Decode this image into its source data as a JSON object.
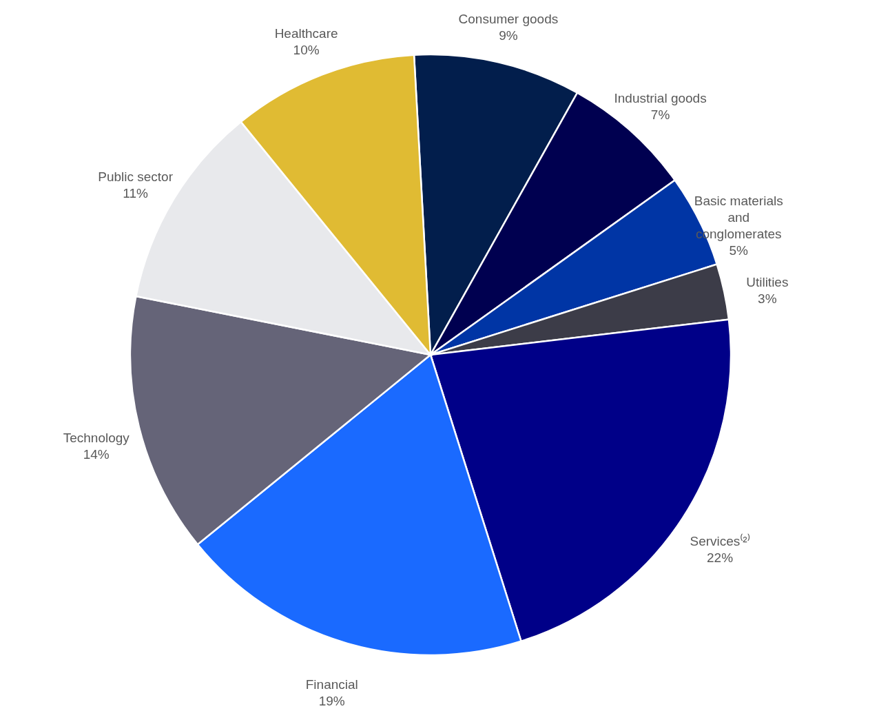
{
  "chart_data": {
    "type": "pie",
    "categories": [
      "Consumer goods",
      "Industrial goods",
      "Basic materials and conglomerates",
      "Utilities",
      "Services⁽²⁾",
      "Financial",
      "Technology",
      "Public sector",
      "Healthcare"
    ],
    "values": [
      9,
      7,
      5,
      3,
      22,
      19,
      14,
      11,
      10
    ],
    "colors": [
      "#021e4c",
      "#000050",
      "#0035a5",
      "#3c3c48",
      "#000088",
      "#1a6aff",
      "#656478",
      "#e8e9ec",
      "#e0bb33"
    ],
    "value_labels": [
      "9%",
      "7%",
      "5%",
      "3%",
      "22%",
      "19%",
      "14%",
      "11%",
      "10%"
    ],
    "legend": false
  }
}
